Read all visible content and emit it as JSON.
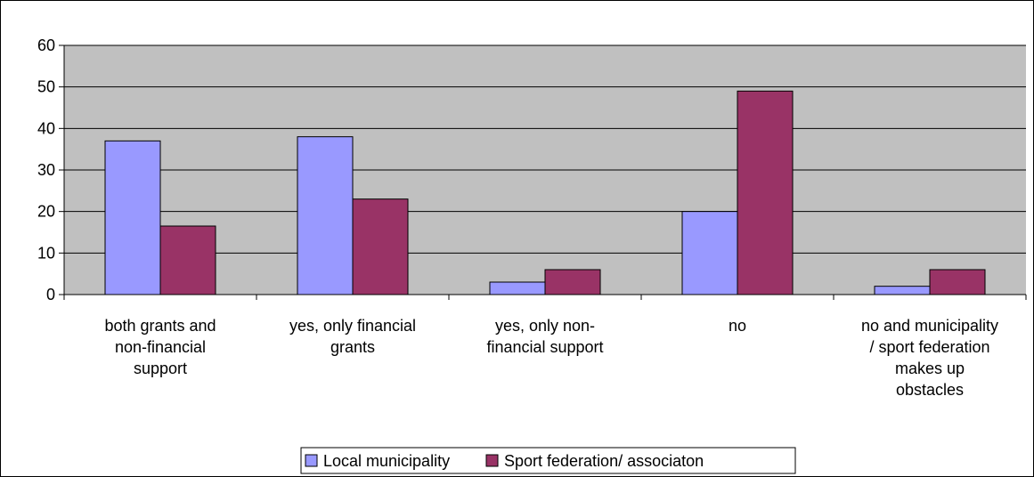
{
  "chart_data": {
    "type": "bar",
    "categories": [
      [
        "both grants and",
        "non-financial",
        "support"
      ],
      [
        "yes, only financial",
        "grants"
      ],
      [
        "yes, only non-",
        "financial support"
      ],
      [
        "no"
      ],
      [
        "no and municipality",
        "/ sport federation",
        "makes up",
        "obstacles"
      ]
    ],
    "series": [
      {
        "name": "Local municipality",
        "color": "#9999ff",
        "values": [
          37,
          38,
          3,
          20,
          2
        ]
      },
      {
        "name": "Sport federation/ associaton",
        "color": "#993366",
        "values": [
          16.5,
          23,
          6,
          49,
          6
        ]
      }
    ],
    "ylim": [
      0,
      60
    ],
    "yticks": [
      0,
      10,
      20,
      30,
      40,
      50,
      60
    ],
    "grid": true,
    "legend_position": "bottom",
    "plot_background": "#c0c0c0"
  }
}
